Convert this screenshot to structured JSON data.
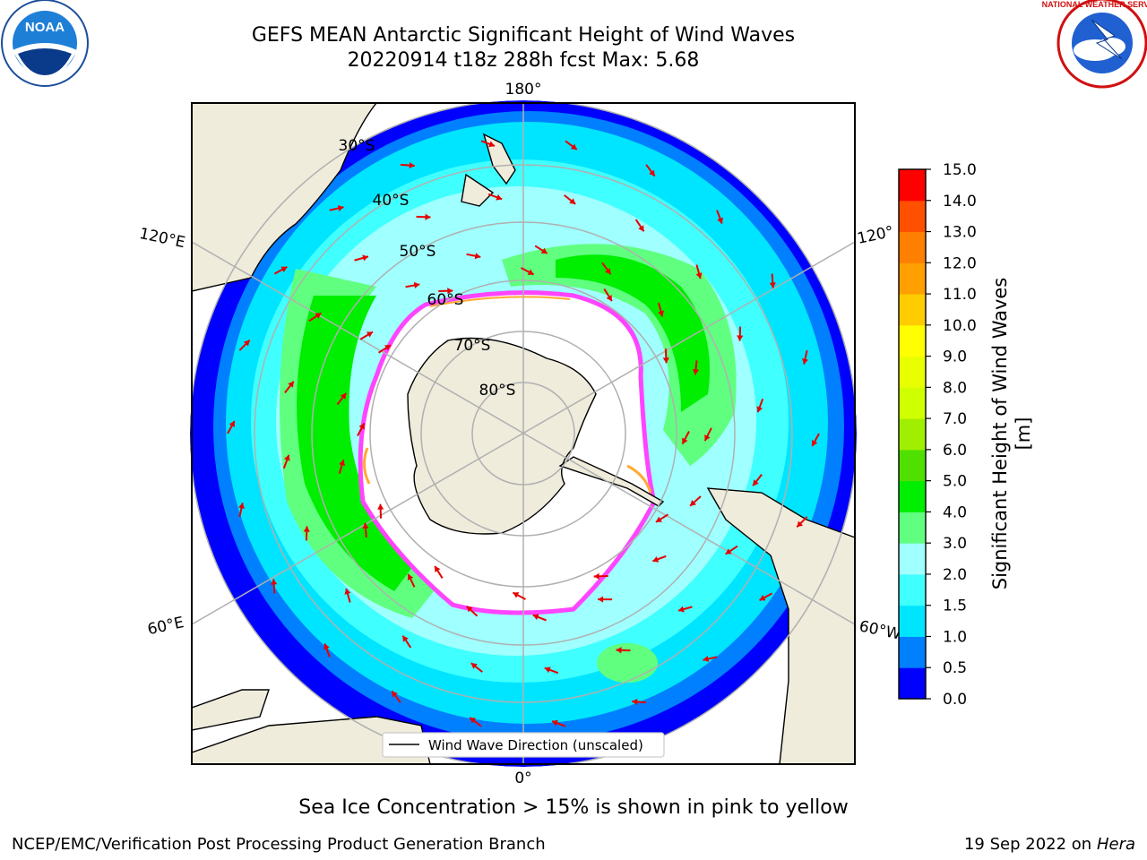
{
  "header": {
    "title_line1": "GEFS MEAN Antarctic Significant Height of Wind Waves",
    "title_line2": "20220914 t18z 288h fcst   Max: 5.68"
  },
  "map": {
    "longitude_labels": {
      "top": "180°",
      "bottom": "0°",
      "upper_left": "120°E",
      "lower_left": "60°E",
      "upper_right": "120°",
      "lower_right": "60°W"
    },
    "latitude_labels": [
      "30°S",
      "40°S",
      "50°S",
      "60°S",
      "70°S",
      "80°S"
    ],
    "legend_label": "Wind Wave Direction (unscaled)",
    "colors": {
      "land": "#efecdc",
      "ocean_low": "#0000ff",
      "ocean_mid": "#00ffff",
      "ocean_high": "#00e600",
      "sea_ice": "#ff44ff",
      "arrows": "#e60000",
      "grid": "#b0b0b0"
    }
  },
  "colorbar": {
    "label": "Significant Height of Wind Waves [m]",
    "ticks": [
      "0.0",
      "0.5",
      "1.0",
      "1.5",
      "2.0",
      "3.0",
      "4.0",
      "5.0",
      "6.0",
      "7.0",
      "8.0",
      "9.0",
      "10.0",
      "11.0",
      "12.0",
      "13.0",
      "14.0",
      "15.0"
    ],
    "colors": [
      "#0000ff",
      "#0080ff",
      "#00e5ff",
      "#40ffff",
      "#a0ffff",
      "#60ff80",
      "#00ee00",
      "#50e000",
      "#a0ee00",
      "#d0ff00",
      "#e8ff00",
      "#ffff00",
      "#ffcc00",
      "#ffa000",
      "#ff8000",
      "#ff5000",
      "#ff0000"
    ]
  },
  "footer": {
    "note": "Sea Ice Concentration > 15% is shown in pink to yellow",
    "credit": "NCEP/EMC/Verification Post Processing Product Generation Branch",
    "date": "19 Sep 2022 on",
    "machine": "Hera"
  },
  "logos": {
    "left": "NOAA",
    "right": "NATIONAL WEATHER SERVICE"
  }
}
